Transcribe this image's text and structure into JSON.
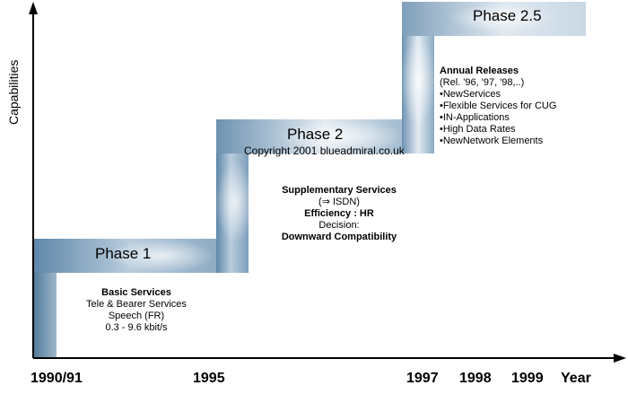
{
  "axis": {
    "y_label": "Capabilities",
    "x_ticks": [
      "1990/91",
      "1995",
      "1997",
      "1998",
      "1999",
      "Year"
    ]
  },
  "phases": {
    "phase1": {
      "title": "Phase 1",
      "lines": [
        "Basic Services",
        "Tele & Bearer Services",
        "Speech (FR)",
        "0.3 - 9.6 kbit/s"
      ]
    },
    "phase2": {
      "title": "Phase 2",
      "copyright": "Copyright 2001 blueadmiral.co.uk",
      "lines": [
        "Supplementary Services",
        "(⇒ ISDN)",
        "Efficiency : HR",
        "Decision:",
        "Downward Compatibility"
      ]
    },
    "phase25": {
      "title": "Phase 2.5",
      "heading": "Annual Releases",
      "subheading": "(Rel. '96, '97, '98,..)",
      "items": [
        "•NewServices",
        "•Flexible Services for CUG",
        "•IN-Applications",
        "•High Data Rates",
        "•NewNetwork Elements"
      ]
    }
  },
  "colors": {
    "band_dark": "#4f7a9c",
    "band_light": "#e6eef5"
  }
}
